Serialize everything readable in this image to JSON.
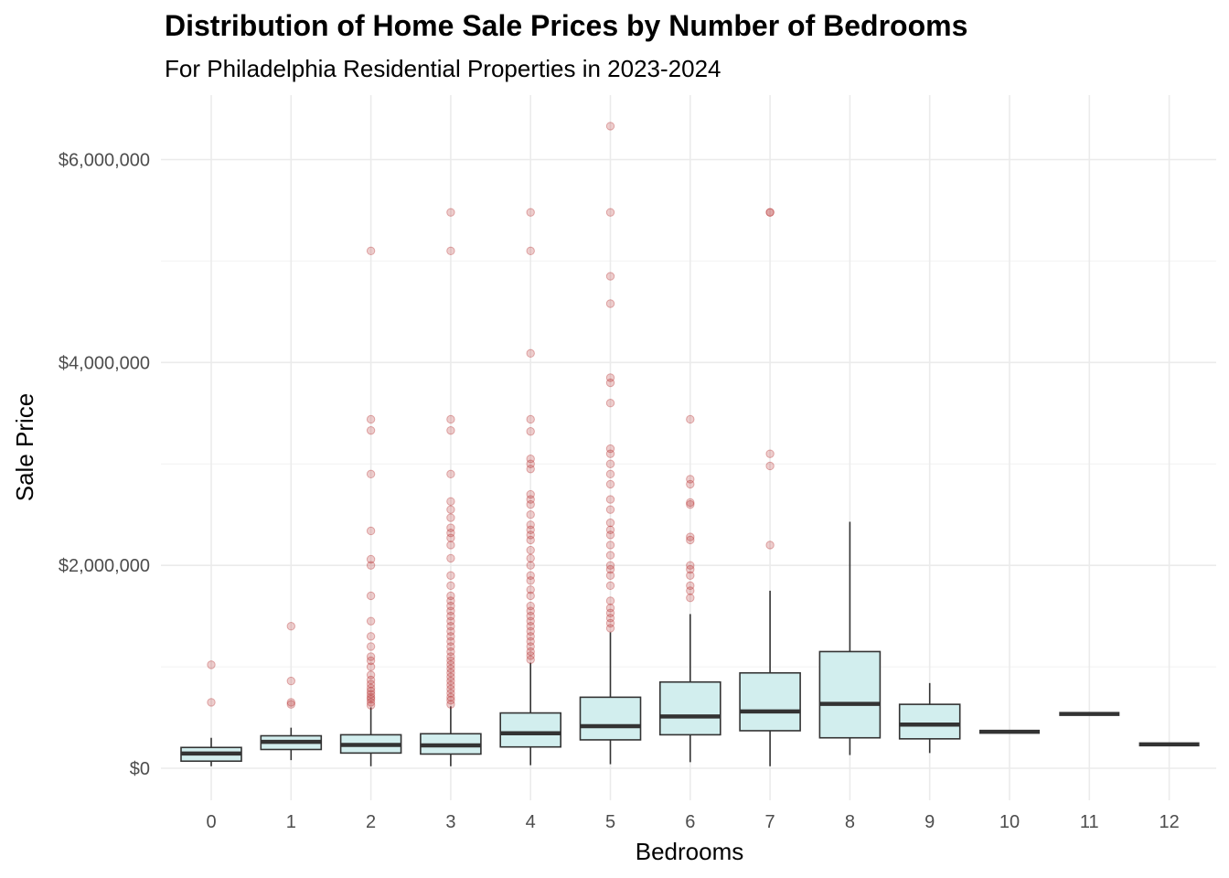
{
  "chart_data": {
    "type": "box",
    "title": "Distribution of Home Sale Prices by Number of Bedrooms",
    "subtitle": "For Philadelphia Residential Properties in 2023-2024",
    "xlabel": "Bedrooms",
    "ylabel": "Sale Price",
    "ylim": [
      -300000,
      6600000
    ],
    "y_ticks": [
      {
        "value": 0,
        "label": "$0"
      },
      {
        "value": 2000000,
        "label": "$2,000,000"
      },
      {
        "value": 4000000,
        "label": "$4,000,000"
      },
      {
        "value": 6000000,
        "label": "$6,000,000"
      }
    ],
    "y_minor_ticks": [
      1000000,
      3000000,
      5000000
    ],
    "grid": true,
    "box_fill": "#d2eeee",
    "box_stroke": "#333333",
    "outlier_color": "#b22222",
    "categories": [
      "0",
      "1",
      "2",
      "3",
      "4",
      "5",
      "6",
      "7",
      "8",
      "9",
      "10",
      "11",
      "12"
    ],
    "boxes": [
      {
        "category": "0",
        "whisker_low": 20000,
        "q1": 70000,
        "median": 145000,
        "q3": 205000,
        "whisker_high": 300000,
        "outliers": [
          650000,
          1020000
        ]
      },
      {
        "category": "1",
        "whisker_low": 80000,
        "q1": 185000,
        "median": 260000,
        "q3": 320000,
        "whisker_high": 400000,
        "outliers": [
          630000,
          650000,
          860000,
          1400000
        ]
      },
      {
        "category": "2",
        "whisker_low": 20000,
        "q1": 150000,
        "median": 230000,
        "q3": 330000,
        "whisker_high": 600000,
        "outliers": [
          620000,
          650000,
          680000,
          700000,
          730000,
          760000,
          790000,
          830000,
          870000,
          920000,
          1000000,
          1060000,
          1100000,
          1200000,
          1300000,
          1450000,
          1700000,
          2000000,
          2060000,
          2340000,
          2900000,
          3330000,
          3440000,
          5100000
        ]
      },
      {
        "category": "3",
        "whisker_low": 20000,
        "q1": 140000,
        "median": 225000,
        "q3": 340000,
        "whisker_high": 610000,
        "outliers": [
          630000,
          670000,
          700000,
          740000,
          780000,
          820000,
          860000,
          900000,
          940000,
          980000,
          1020000,
          1060000,
          1100000,
          1150000,
          1200000,
          1250000,
          1300000,
          1350000,
          1400000,
          1450000,
          1500000,
          1550000,
          1600000,
          1650000,
          1700000,
          1800000,
          1900000,
          2070000,
          2200000,
          2270000,
          2320000,
          2370000,
          2470000,
          2550000,
          2630000,
          2900000,
          3330000,
          3440000,
          5100000,
          5480000
        ]
      },
      {
        "category": "4",
        "whisker_low": 30000,
        "q1": 210000,
        "median": 345000,
        "q3": 545000,
        "whisker_high": 1040000,
        "outliers": [
          1070000,
          1110000,
          1150000,
          1200000,
          1250000,
          1300000,
          1350000,
          1400000,
          1450000,
          1500000,
          1550000,
          1600000,
          1700000,
          1760000,
          1850000,
          1900000,
          2000000,
          2070000,
          2150000,
          2250000,
          2300000,
          2350000,
          2400000,
          2500000,
          2600000,
          2650000,
          2700000,
          2950000,
          3000000,
          3050000,
          3320000,
          3440000,
          4090000,
          5100000,
          5480000
        ]
      },
      {
        "category": "5",
        "whisker_low": 40000,
        "q1": 280000,
        "median": 415000,
        "q3": 700000,
        "whisker_high": 1340000,
        "outliers": [
          1380000,
          1430000,
          1480000,
          1530000,
          1580000,
          1650000,
          1800000,
          1900000,
          1960000,
          2000000,
          2100000,
          2200000,
          2300000,
          2350000,
          2420000,
          2550000,
          2650000,
          2800000,
          2900000,
          3000000,
          3100000,
          3150000,
          3600000,
          3800000,
          3850000,
          4580000,
          4850000,
          5480000,
          6330000
        ]
      },
      {
        "category": "6",
        "whisker_low": 60000,
        "q1": 330000,
        "median": 510000,
        "q3": 850000,
        "whisker_high": 1520000,
        "outliers": [
          1680000,
          1750000,
          1800000,
          1900000,
          1960000,
          2000000,
          2250000,
          2280000,
          2600000,
          2620000,
          2800000,
          2850000,
          3440000
        ]
      },
      {
        "category": "7",
        "whisker_low": 20000,
        "q1": 370000,
        "median": 560000,
        "q3": 940000,
        "whisker_high": 1750000,
        "outliers": [
          2200000,
          2980000,
          3100000,
          5480000,
          5480000
        ]
      },
      {
        "category": "8",
        "whisker_low": 130000,
        "q1": 300000,
        "median": 635000,
        "q3": 1150000,
        "whisker_high": 2430000,
        "outliers": []
      },
      {
        "category": "9",
        "whisker_low": 150000,
        "q1": 290000,
        "median": 430000,
        "q3": 630000,
        "whisker_high": 840000,
        "outliers": []
      },
      {
        "category": "10",
        "whisker_low": 360000,
        "q1": 360000,
        "median": 360000,
        "q3": 360000,
        "whisker_high": 360000,
        "outliers": []
      },
      {
        "category": "11",
        "whisker_low": 535000,
        "q1": 535000,
        "median": 535000,
        "q3": 535000,
        "whisker_high": 535000,
        "outliers": []
      },
      {
        "category": "12",
        "whisker_low": 235000,
        "q1": 235000,
        "median": 235000,
        "q3": 235000,
        "whisker_high": 235000,
        "outliers": []
      }
    ]
  }
}
